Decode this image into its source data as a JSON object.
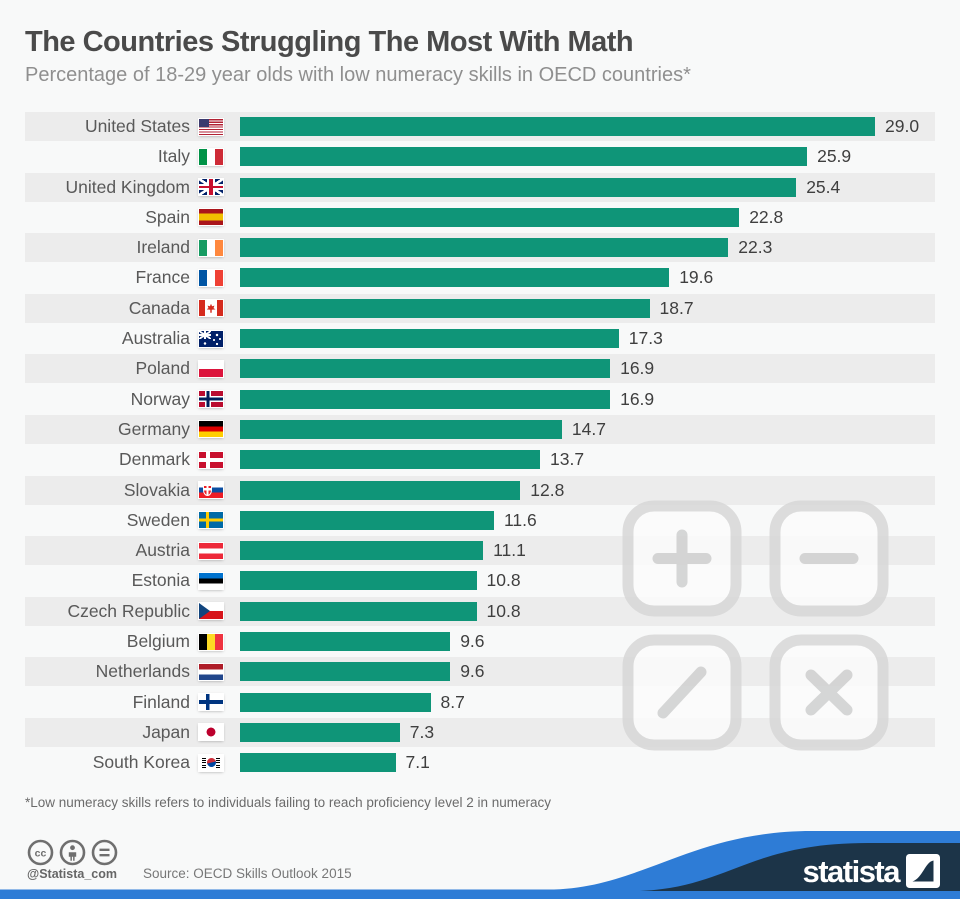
{
  "header": {
    "title": "The Countries Struggling The Most With Math",
    "subtitle": "Percentage of 18-29 year olds with low numeracy skills in OECD countries*"
  },
  "chart_data": {
    "type": "bar",
    "orientation": "horizontal",
    "title": "The Countries Struggling The Most With Math",
    "subtitle": "Percentage of 18-29 year olds with low numeracy skills in OECD countries*",
    "xlabel": "",
    "ylabel": "",
    "xlim": [
      0,
      29
    ],
    "grid": false,
    "bar_color": "#0f9578",
    "band_color": "#ececec",
    "value_format": "one-decimal",
    "categories": [
      "United States",
      "Italy",
      "United Kingdom",
      "Spain",
      "Ireland",
      "France",
      "Canada",
      "Australia",
      "Poland",
      "Norway",
      "Germany",
      "Denmark",
      "Slovakia",
      "Sweden",
      "Austria",
      "Estonia",
      "Czech Republic",
      "Belgium",
      "Netherlands",
      "Finland",
      "Japan",
      "South Korea"
    ],
    "values": [
      29.0,
      25.9,
      25.4,
      22.8,
      22.3,
      19.6,
      18.7,
      17.3,
      16.9,
      16.9,
      14.7,
      13.7,
      12.8,
      11.6,
      11.1,
      10.8,
      10.8,
      9.6,
      9.6,
      8.7,
      7.3,
      7.1
    ],
    "flags": [
      "us",
      "it",
      "gb",
      "es",
      "ie",
      "fr",
      "ca",
      "au",
      "pl",
      "no",
      "de",
      "dk",
      "sk",
      "se",
      "at",
      "ee",
      "cz",
      "be",
      "nl",
      "fi",
      "jp",
      "kr"
    ]
  },
  "watermark": {
    "symbols": [
      "plus-key-icon",
      "minus-key-icon",
      "divide-key-icon",
      "multiply-key-icon"
    ]
  },
  "footnote": "*Low numeracy skills refers to individuals failing to reach proficiency level 2 in numeracy",
  "footer": {
    "cc_icons": [
      "cc-icon",
      "attribution-icon",
      "equal-icon"
    ],
    "handle": "@Statista_com",
    "source": "Source: OECD Skills Outlook 2015",
    "brand": "statista",
    "wave_blue": "#2e7cd6",
    "wave_navy": "#1c3448"
  }
}
